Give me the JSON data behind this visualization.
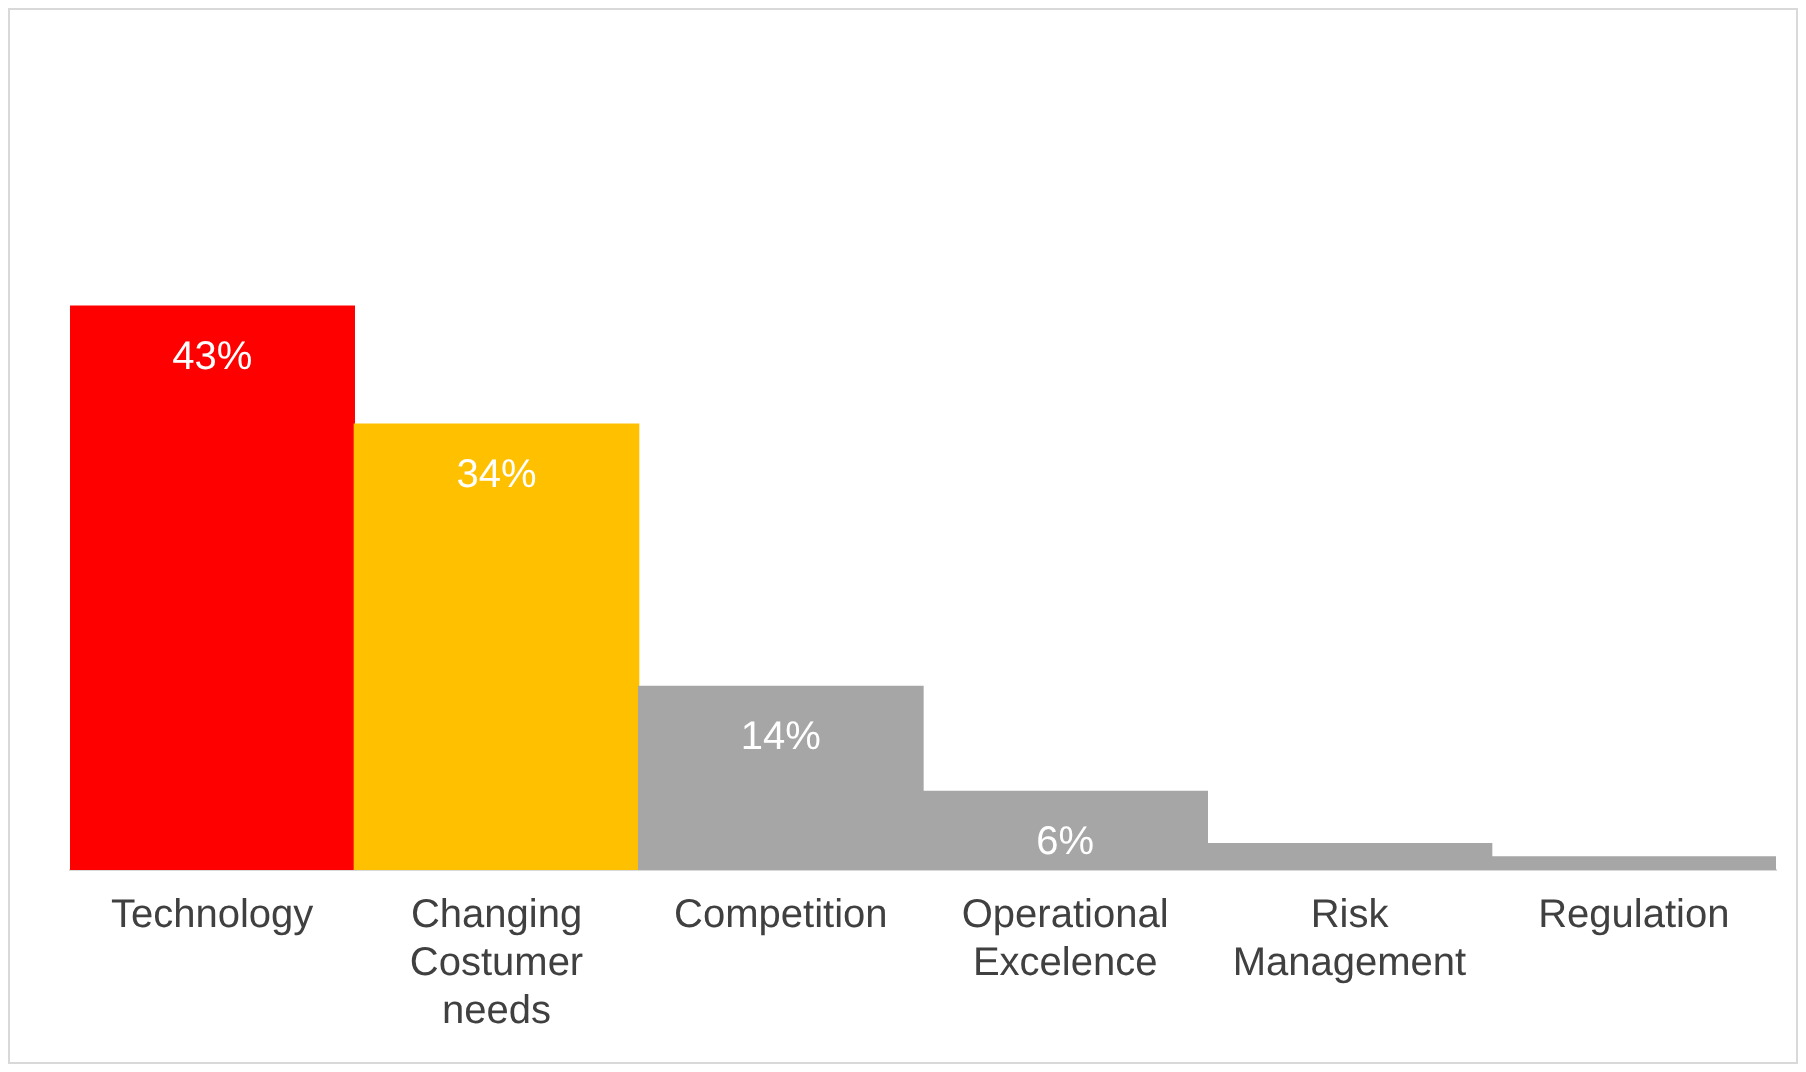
{
  "chart_data": {
    "type": "bar",
    "categories": [
      "Technology",
      "Changing Costumer needs",
      "Competition",
      "Operational Excelence",
      "Risk Management",
      "Regulation"
    ],
    "values": [
      43,
      34,
      14,
      6,
      2,
      1
    ],
    "colors": [
      "#ff0000",
      "#ffc000",
      "#a6a6a6",
      "#a6a6a6",
      "#a6a6a6",
      "#a6a6a6"
    ],
    "value_labels": [
      "43%",
      "34%",
      "14%",
      "6%",
      null,
      null
    ],
    "tick_labels": "x",
    "grid": false,
    "legend": false
  }
}
